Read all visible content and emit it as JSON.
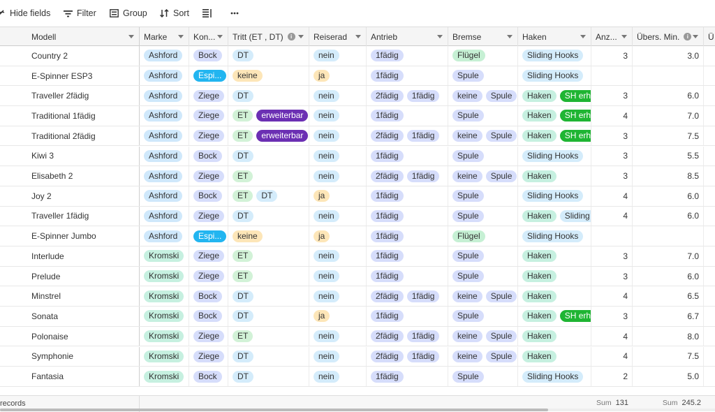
{
  "colors": {
    "marke": {
      "Ashford": "#cfe8fb",
      "Kromski": "#c6f0e0",
      "_": "#c6f0e0"
    },
    "konstruktion": {
      "Bock": "#d6ddfb",
      "Ziege": "#d6ddfb",
      "Espi...": "#22b5f0",
      "_": "#d6ddfb"
    },
    "tritt": {
      "DT": "#d4ecfb",
      "ET": "#d2f2d7",
      "keine": "#fde6b8",
      "erweiterbar": "#6b2fb3"
    },
    "reiserad": {
      "nein": "#d4ecfb",
      "ja": "#fde6b8"
    },
    "antrieb": {
      "1fädig": "#d6ddfb",
      "2fädig": "#d6ddfb"
    },
    "bremse": {
      "Flügel": "#c6f0d4",
      "Spule": "#d6ddfb",
      "keine": "#d6ddfb"
    },
    "haken": {
      "Sliding Hooks": "#d4ecfb",
      "Haken": "#c6f0e0",
      "SH erh.": "#1fb533",
      "Sliding Hooks ": "#d4ecfb"
    }
  },
  "toolbar": {
    "hide_fields": "Hide fields",
    "filter": "Filter",
    "group": "Group",
    "sort": "Sort"
  },
  "headers": {
    "modell": "Modell",
    "marke": "Marke",
    "konstruktion": "Kon...",
    "tritt": "Tritt (ET , DT)",
    "reiserad": "Reiserad",
    "antrieb": "Antrieb",
    "bremse": "Bremse",
    "haken": "Haken",
    "anzahl": "Anz...",
    "uebers": "Übers. Min.",
    "next": "Ü"
  },
  "rows": [
    {
      "modell": "Country 2",
      "marke": "Ashford",
      "konstruktion": "Bock",
      "tritt": [
        "DT"
      ],
      "reiserad": "nein",
      "antrieb": [
        "1fädig"
      ],
      "bremse": [
        "Flügel"
      ],
      "haken": [
        "Sliding Hooks"
      ],
      "anzahl": "3",
      "uebers": "3.0"
    },
    {
      "modell": "E-Spinner ESP3",
      "marke": "Ashford",
      "konstruktion": "Espi...",
      "tritt": [
        "keine"
      ],
      "reiserad": "ja",
      "antrieb": [
        "1fädig"
      ],
      "bremse": [
        "Spule"
      ],
      "haken": [
        "Sliding Hooks"
      ],
      "anzahl": "",
      "uebers": ""
    },
    {
      "modell": "Traveller 2fädig",
      "marke": "Ashford",
      "konstruktion": "Ziege",
      "tritt": [
        "DT"
      ],
      "reiserad": "nein",
      "antrieb": [
        "2fädig",
        "1fädig"
      ],
      "bremse": [
        "keine",
        "Spule"
      ],
      "haken": [
        "Haken",
        "SH erh."
      ],
      "anzahl": "3",
      "uebers": "6.0"
    },
    {
      "modell": "Traditional 1fädig",
      "marke": "Ashford",
      "konstruktion": "Ziege",
      "tritt": [
        "ET",
        "erweiterbar"
      ],
      "reiserad": "nein",
      "antrieb": [
        "1fädig"
      ],
      "bremse": [
        "Spule"
      ],
      "haken": [
        "Haken",
        "SH erh."
      ],
      "anzahl": "4",
      "uebers": "7.0"
    },
    {
      "modell": "Traditional 2fädig",
      "marke": "Ashford",
      "konstruktion": "Ziege",
      "tritt": [
        "ET",
        "erweiterbar"
      ],
      "reiserad": "nein",
      "antrieb": [
        "2fädig",
        "1fädig"
      ],
      "bremse": [
        "keine",
        "Spule"
      ],
      "haken": [
        "Haken",
        "SH erh."
      ],
      "anzahl": "3",
      "uebers": "7.5"
    },
    {
      "modell": "Kiwi 3",
      "marke": "Ashford",
      "konstruktion": "Bock",
      "tritt": [
        "DT"
      ],
      "reiserad": "nein",
      "antrieb": [
        "1fädig"
      ],
      "bremse": [
        "Spule"
      ],
      "haken": [
        "Sliding Hooks"
      ],
      "anzahl": "3",
      "uebers": "5.5"
    },
    {
      "modell": "Elisabeth 2",
      "marke": "Ashford",
      "konstruktion": "Ziege",
      "tritt": [
        "ET"
      ],
      "reiserad": "nein",
      "antrieb": [
        "2fädig",
        "1fädig"
      ],
      "bremse": [
        "keine",
        "Spule"
      ],
      "haken": [
        "Haken"
      ],
      "anzahl": "3",
      "uebers": "8.5"
    },
    {
      "modell": "Joy 2",
      "marke": "Ashford",
      "konstruktion": "Bock",
      "tritt": [
        "ET",
        "DT"
      ],
      "reiserad": "ja",
      "antrieb": [
        "1fädig"
      ],
      "bremse": [
        "Spule"
      ],
      "haken": [
        "Sliding Hooks"
      ],
      "anzahl": "4",
      "uebers": "6.0"
    },
    {
      "modell": "Traveller 1fädig",
      "marke": "Ashford",
      "konstruktion": "Ziege",
      "tritt": [
        "DT"
      ],
      "reiserad": "nein",
      "antrieb": [
        "1fädig"
      ],
      "bremse": [
        "Spule"
      ],
      "haken": [
        "Haken",
        "Sliding Hooks "
      ],
      "anzahl": "4",
      "uebers": "6.0"
    },
    {
      "modell": "E-Spinner Jumbo",
      "marke": "Ashford",
      "konstruktion": "Espi...",
      "tritt": [
        "keine"
      ],
      "reiserad": "ja",
      "antrieb": [
        "1fädig"
      ],
      "bremse": [
        "Flügel"
      ],
      "haken": [
        "Sliding Hooks"
      ],
      "anzahl": "",
      "uebers": ""
    },
    {
      "modell": "Interlude",
      "marke": "Kromski",
      "konstruktion": "Ziege",
      "tritt": [
        "ET"
      ],
      "reiserad": "nein",
      "antrieb": [
        "1fädig"
      ],
      "bremse": [
        "Spule"
      ],
      "haken": [
        "Haken"
      ],
      "anzahl": "3",
      "uebers": "7.0"
    },
    {
      "modell": "Prelude",
      "marke": "Kromski",
      "konstruktion": "Ziege",
      "tritt": [
        "ET"
      ],
      "reiserad": "nein",
      "antrieb": [
        "1fädig"
      ],
      "bremse": [
        "Spule"
      ],
      "haken": [
        "Haken"
      ],
      "anzahl": "3",
      "uebers": "6.0"
    },
    {
      "modell": "Minstrel",
      "marke": "Kromski",
      "konstruktion": "Bock",
      "tritt": [
        "DT"
      ],
      "reiserad": "nein",
      "antrieb": [
        "2fädig",
        "1fädig"
      ],
      "bremse": [
        "keine",
        "Spule"
      ],
      "haken": [
        "Haken"
      ],
      "anzahl": "4",
      "uebers": "6.5"
    },
    {
      "modell": "Sonata",
      "marke": "Kromski",
      "konstruktion": "Bock",
      "tritt": [
        "DT"
      ],
      "reiserad": "ja",
      "antrieb": [
        "1fädig"
      ],
      "bremse": [
        "Spule"
      ],
      "haken": [
        "Haken",
        "SH erh."
      ],
      "anzahl": "3",
      "uebers": "6.7"
    },
    {
      "modell": "Polonaise",
      "marke": "Kromski",
      "konstruktion": "Ziege",
      "tritt": [
        "ET"
      ],
      "reiserad": "nein",
      "antrieb": [
        "2fädig",
        "1fädig"
      ],
      "bremse": [
        "keine",
        "Spule"
      ],
      "haken": [
        "Haken"
      ],
      "anzahl": "4",
      "uebers": "8.0"
    },
    {
      "modell": "Symphonie",
      "marke": "Kromski",
      "konstruktion": "Ziege",
      "tritt": [
        "DT"
      ],
      "reiserad": "nein",
      "antrieb": [
        "2fädig",
        "1fädig"
      ],
      "bremse": [
        "keine",
        "Spule"
      ],
      "haken": [
        "Haken"
      ],
      "anzahl": "4",
      "uebers": "7.5"
    },
    {
      "modell": "Fantasia",
      "marke": "Kromski",
      "konstruktion": "Bock",
      "tritt": [
        "DT"
      ],
      "reiserad": "nein",
      "antrieb": [
        "1fädig"
      ],
      "bremse": [
        "Spule"
      ],
      "haken": [
        "Sliding Hooks"
      ],
      "anzahl": "2",
      "uebers": "5.0"
    }
  ],
  "footer": {
    "records_label": "records",
    "sum_label": "Sum",
    "anzahl_sum": "131",
    "uebers_sum": "245.2"
  }
}
